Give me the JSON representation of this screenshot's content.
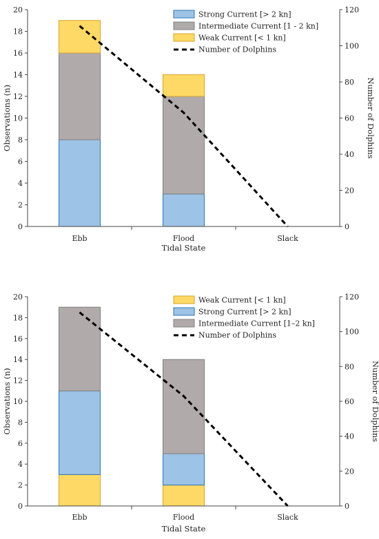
{
  "chart_data": [
    {
      "type": "bar",
      "stacked": true,
      "categories": [
        "Ebb",
        "Flood",
        "Slack"
      ],
      "xlabel": "Tidal State",
      "ylabel": "Observations (n)",
      "y2label": "Number of Dolphins",
      "ylim": [
        0,
        20
      ],
      "yticks": [
        0,
        2,
        4,
        6,
        8,
        10,
        12,
        14,
        16,
        18,
        20
      ],
      "y2lim": [
        0,
        120
      ],
      "y2ticks": [
        0,
        20,
        40,
        60,
        80,
        100,
        120
      ],
      "grid": false,
      "legend_position": "top-right",
      "series": [
        {
          "name": "Strong Current [> 2 kn]",
          "values": [
            8,
            3,
            0
          ],
          "color": "#9dc3e6",
          "stroke": "#2e75b6"
        },
        {
          "name": "Intermediate Current [1 - 2 kn]",
          "values": [
            8,
            9,
            0
          ],
          "color": "#b0aaaa",
          "stroke": "#7f7f7f"
        },
        {
          "name": "Weak Current [< 1 kn]",
          "values": [
            3,
            2,
            0
          ],
          "color": "#ffd966",
          "stroke": "#d6a32b"
        }
      ],
      "line": {
        "name": "Number of Dolphins",
        "axis": "right",
        "values": [
          111,
          63,
          0
        ],
        "style": "dashed",
        "color": "#000000"
      },
      "legend_order": [
        "Strong Current [> 2 kn]",
        "Intermediate Current [1 - 2 kn]",
        "Weak Current [< 1 kn]",
        "Number of Dolphins"
      ]
    },
    {
      "type": "bar",
      "stacked": true,
      "categories": [
        "Ebb",
        "Flood",
        "Slack"
      ],
      "xlabel": "Tidal State",
      "ylabel": "Observations (n)",
      "y2label": "Number of Dolphins",
      "ylim": [
        0,
        20
      ],
      "yticks": [
        0,
        2,
        4,
        6,
        8,
        10,
        12,
        14,
        16,
        18,
        20
      ],
      "y2lim": [
        0,
        120
      ],
      "y2ticks": [
        0,
        20,
        40,
        60,
        80,
        100,
        120
      ],
      "grid": false,
      "legend_position": "top-right",
      "series": [
        {
          "name": "Weak Current [< 1 kn]",
          "values": [
            3,
            2,
            0
          ],
          "color": "#ffd966",
          "stroke": "#d6a32b"
        },
        {
          "name": "Strong Current [> 2 kn]",
          "values": [
            8,
            3,
            0
          ],
          "color": "#9dc3e6",
          "stroke": "#2e75b6"
        },
        {
          "name": "Intermediate Current [1–2 kn]",
          "values": [
            8,
            9,
            0
          ],
          "color": "#b0aaaa",
          "stroke": "#7f7f7f"
        }
      ],
      "line": {
        "name": "Number of Dolphins",
        "axis": "right",
        "values": [
          111,
          63,
          0
        ],
        "style": "dashed",
        "color": "#000000"
      },
      "legend_order": [
        "Weak Current [< 1 kn]",
        "Strong Current [> 2 kn]",
        "Intermediate Current [1–2 kn]",
        "Number of Dolphins"
      ]
    }
  ]
}
